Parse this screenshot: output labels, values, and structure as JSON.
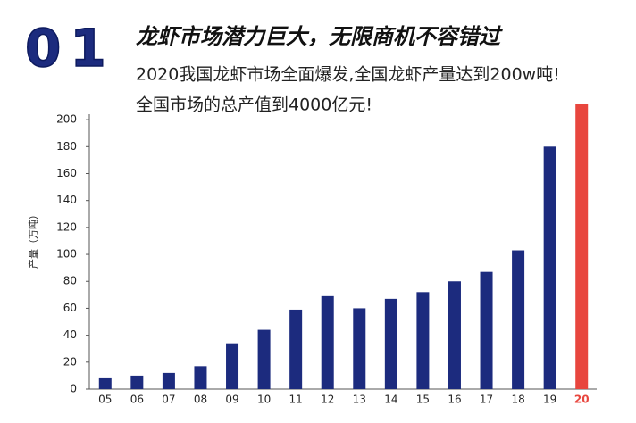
{
  "header": {
    "number": "01",
    "title": "龙虾市场潜力巨大，无限商机不容错过",
    "lines": [
      "2020我国龙虾市场全面爆发,全国龙虾产量达到200w吨!",
      "全国市场的总产值到4000亿元!"
    ]
  },
  "chart_data": {
    "type": "bar",
    "ylabel": "产量（万吨）",
    "categories": [
      "05",
      "06",
      "07",
      "08",
      "09",
      "10",
      "11",
      "12",
      "13",
      "14",
      "15",
      "16",
      "17",
      "18",
      "19",
      "20"
    ],
    "values": [
      8,
      10,
      12,
      17,
      34,
      44,
      59,
      69,
      60,
      67,
      72,
      80,
      87,
      103,
      180,
      212
    ],
    "colors": [
      "#1c2b7e",
      "#1c2b7e",
      "#1c2b7e",
      "#1c2b7e",
      "#1c2b7e",
      "#1c2b7e",
      "#1c2b7e",
      "#1c2b7e",
      "#1c2b7e",
      "#1c2b7e",
      "#1c2b7e",
      "#1c2b7e",
      "#1c2b7e",
      "#1c2b7e",
      "#1c2b7e",
      "#e8463e"
    ],
    "ylim": [
      0,
      212
    ],
    "yticks": [
      0,
      20,
      40,
      60,
      80,
      100,
      120,
      140,
      160,
      180,
      200
    ]
  }
}
